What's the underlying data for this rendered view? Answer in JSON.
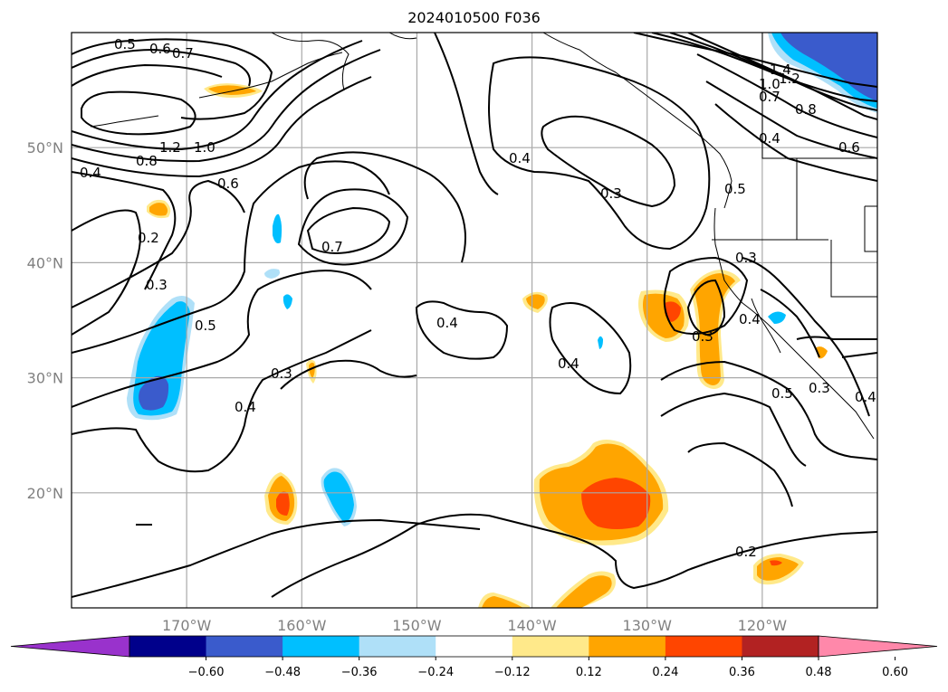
{
  "title": "2024010500 F036",
  "map": {
    "extent": {
      "lon_min": -180,
      "lon_max": -110,
      "lat_min": 10,
      "lat_max": 60
    },
    "lat_ticks": [
      {
        "lat": 20,
        "label": "20°N"
      },
      {
        "lat": 30,
        "label": "30°N"
      },
      {
        "lat": 40,
        "label": "40°N"
      },
      {
        "lat": 50,
        "label": "50°N"
      }
    ],
    "lon_ticks": [
      {
        "lon": -170,
        "label": "170°W"
      },
      {
        "lon": -160,
        "label": "160°W"
      },
      {
        "lon": -150,
        "label": "150°W"
      },
      {
        "lon": -140,
        "label": "140°W"
      },
      {
        "lon": -130,
        "label": "130°W"
      },
      {
        "lon": -120,
        "label": "120°W"
      }
    ],
    "contour_labels": [
      "0.5",
      "0.6",
      "0.7",
      "1.2",
      "1.0",
      "0.8",
      "0.4",
      "0.6",
      "0.2",
      "0.3",
      "0.5",
      "0.7",
      "0.3",
      "0.4",
      "0.4",
      "0.3",
      "0.4",
      "0.4",
      "1.4",
      "1.0",
      "1.2",
      "0.7",
      "0.8",
      "0.4",
      "0.6",
      "0.5",
      "0.3",
      "0.4",
      "0.3",
      "0.5",
      "0.3",
      "0.4",
      "0.2"
    ]
  },
  "colorbar": {
    "colors": [
      "#9932cc",
      "#00008b",
      "#3a5bcc",
      "#00bfff",
      "#afe0f8",
      "#ffffff",
      "#ffe98a",
      "#ffa500",
      "#ff4500",
      "#b22222",
      "#ff88aa"
    ],
    "ticks": [
      "−0.60",
      "−0.48",
      "−0.36",
      "−0.24",
      "−0.12",
      "0.12",
      "0.24",
      "0.36",
      "0.48",
      "0.60"
    ]
  }
}
